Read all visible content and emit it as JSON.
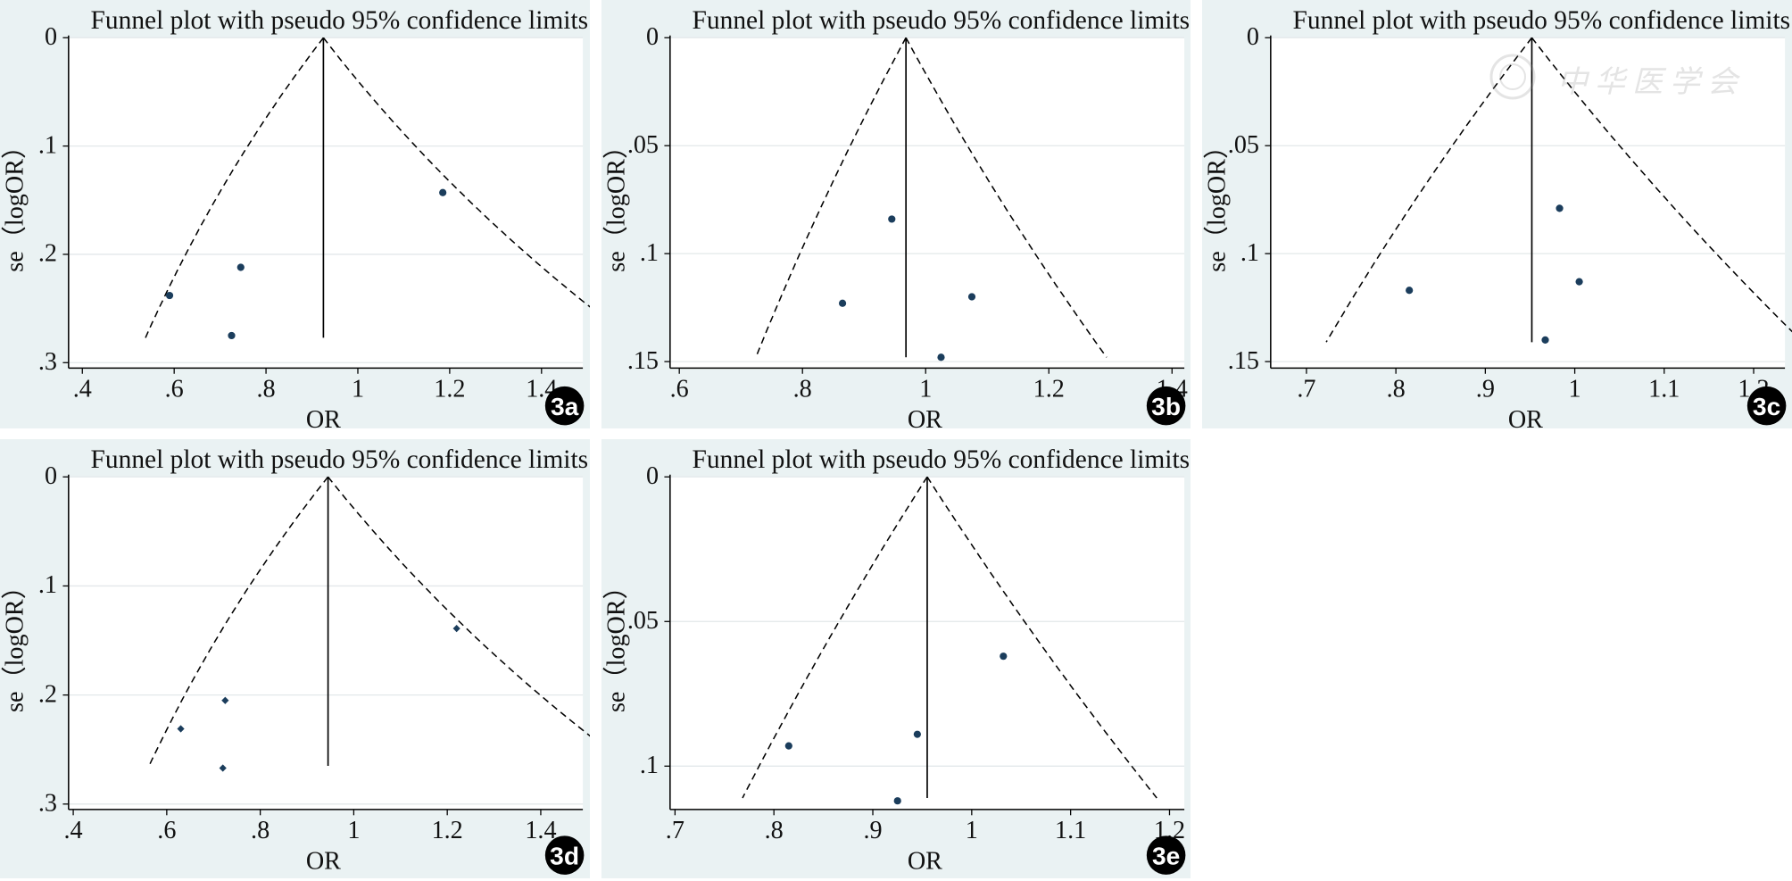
{
  "chart_data": [
    {
      "id": "3a",
      "type": "scatter",
      "title": "Funnel plot with pseudo 95% confidence limits",
      "xlabel": "OR",
      "ylabel": "se（logOR）",
      "xlim": [
        0.37,
        1.49
      ],
      "ylim": [
        0,
        0.305
      ],
      "xticks": [
        0.4,
        0.6,
        0.8,
        1.0,
        1.2,
        1.4
      ],
      "xtick_labels": [
        ".4",
        ".6",
        ".8",
        "1",
        "1.2",
        "1.4"
      ],
      "yticks": [
        0,
        0.1,
        0.2,
        0.3
      ],
      "ytick_labels": [
        "0",
        ".1",
        ".2",
        ".3"
      ],
      "pooled_or": 0.925,
      "funnel_se_max": 0.277,
      "marker": "circle",
      "points": [
        {
          "x": 0.59,
          "y": 0.238
        },
        {
          "x": 0.745,
          "y": 0.212
        },
        {
          "x": 0.725,
          "y": 0.275
        },
        {
          "x": 1.185,
          "y": 0.143
        }
      ],
      "badge": "3a"
    },
    {
      "id": "3b",
      "type": "scatter",
      "title": "Funnel plot with pseudo 95% confidence limits",
      "xlabel": "OR",
      "ylabel": "se（logOR）",
      "xlim": [
        0.585,
        1.42
      ],
      "ylim": [
        0,
        0.153
      ],
      "xticks": [
        0.6,
        0.8,
        1.0,
        1.2,
        1.4
      ],
      "xtick_labels": [
        ".6",
        ".8",
        "1",
        "1.2",
        "1.4"
      ],
      "yticks": [
        0,
        0.05,
        0.1,
        0.15
      ],
      "ytick_labels": [
        "0",
        ".05",
        ".1",
        ".15"
      ],
      "pooled_or": 0.968,
      "funnel_se_max": 0.148,
      "marker": "circle",
      "points": [
        {
          "x": 0.945,
          "y": 0.084
        },
        {
          "x": 0.865,
          "y": 0.123
        },
        {
          "x": 1.075,
          "y": 0.12
        },
        {
          "x": 1.025,
          "y": 0.148
        }
      ],
      "badge": "3b"
    },
    {
      "id": "3c",
      "type": "scatter",
      "title": "Funnel plot with pseudo 95% confidence limits",
      "xlabel": "OR",
      "ylabel": "se（logOR）",
      "xlim": [
        0.66,
        1.235
      ],
      "ylim": [
        0,
        0.153
      ],
      "xticks": [
        0.7,
        0.8,
        0.9,
        1.0,
        1.1,
        1.2
      ],
      "xtick_labels": [
        ".7",
        ".8",
        ".9",
        "1",
        "1.1",
        "1.2"
      ],
      "yticks": [
        0,
        0.05,
        0.1,
        0.15
      ],
      "ytick_labels": [
        "0",
        ".05",
        ".1",
        ".15"
      ],
      "pooled_or": 0.952,
      "funnel_se_max": 0.141,
      "marker": "circle",
      "points": [
        {
          "x": 0.983,
          "y": 0.079
        },
        {
          "x": 1.005,
          "y": 0.113
        },
        {
          "x": 0.815,
          "y": 0.117
        },
        {
          "x": 0.967,
          "y": 0.14
        }
      ],
      "badge": "3c"
    },
    {
      "id": "3d",
      "type": "scatter",
      "title": "Funnel plot with pseudo 95% confidence limits",
      "xlabel": "OR",
      "ylabel": "se（logOR）",
      "xlim": [
        0.39,
        1.49
      ],
      "ylim": [
        0,
        0.305
      ],
      "xticks": [
        0.4,
        0.6,
        0.8,
        1.0,
        1.2,
        1.4
      ],
      "xtick_labels": [
        ".4",
        ".6",
        ".8",
        "1",
        "1.2",
        "1.4"
      ],
      "yticks": [
        0,
        0.1,
        0.2,
        0.3
      ],
      "ytick_labels": [
        "0",
        ".1",
        ".2",
        ".3"
      ],
      "pooled_or": 0.945,
      "funnel_se_max": 0.265,
      "marker": "diamond",
      "points": [
        {
          "x": 1.22,
          "y": 0.139
        },
        {
          "x": 0.725,
          "y": 0.205
        },
        {
          "x": 0.63,
          "y": 0.231
        },
        {
          "x": 0.72,
          "y": 0.267
        }
      ],
      "badge": "3d"
    },
    {
      "id": "3e",
      "type": "scatter",
      "title": "Funnel plot with pseudo 95% confidence limits",
      "xlabel": "OR",
      "ylabel": "se（logOR）",
      "xlim": [
        0.695,
        1.215
      ],
      "ylim": [
        0,
        0.115
      ],
      "xticks": [
        0.7,
        0.8,
        0.9,
        1.0,
        1.1,
        1.2
      ],
      "xtick_labels": [
        ".7",
        ".8",
        ".9",
        "1",
        "1.1",
        "1.2"
      ],
      "yticks": [
        0,
        0.05,
        0.1
      ],
      "ytick_labels": [
        "0",
        ".05",
        ".1"
      ],
      "pooled_or": 0.955,
      "funnel_se_max": 0.111,
      "marker": "circle",
      "points": [
        {
          "x": 1.032,
          "y": 0.062
        },
        {
          "x": 0.815,
          "y": 0.093
        },
        {
          "x": 0.945,
          "y": 0.089
        },
        {
          "x": 0.925,
          "y": 0.112
        }
      ],
      "badge": "3e"
    }
  ],
  "colors": {
    "panel_bg": "#eaf2f3",
    "plot_bg": "#ffffff",
    "grid": "#e3e8ea",
    "line": "#000000",
    "point": "#1b3d5c",
    "badge_bg": "#000000"
  },
  "watermark": "中华医学会"
}
